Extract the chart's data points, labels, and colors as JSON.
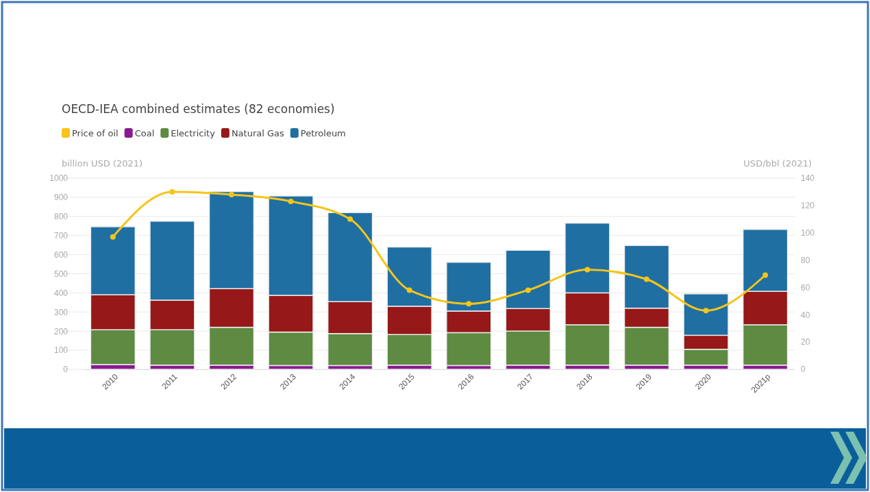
{
  "chart_data": {
    "type": "bar",
    "title": "OECD-IEA combined estimates (82 economies)",
    "ylabel": "billion USD (2021)",
    "y2label": "USD/bbl (2021)",
    "categories": [
      "2010",
      "2011",
      "2012",
      "2013",
      "2014",
      "2015",
      "2016",
      "2017",
      "2018",
      "2019",
      "2020",
      "2021p"
    ],
    "stacked": true,
    "series": [
      {
        "name": "Price of oil",
        "type": "line",
        "axis": "y2",
        "color": "#f5c518",
        "marker": "circle",
        "values": [
          97,
          130,
          128,
          123,
          110,
          58,
          48,
          58,
          73,
          66,
          43,
          69
        ]
      },
      {
        "name": "Coal",
        "color": "#8a1a8f",
        "values": [
          25,
          22,
          22,
          20,
          20,
          22,
          20,
          22,
          22,
          22,
          22,
          22
        ]
      },
      {
        "name": "Electricity",
        "color": "#5e8a42",
        "values": [
          182,
          185,
          198,
          175,
          167,
          160,
          172,
          178,
          211,
          198,
          83,
          211
        ]
      },
      {
        "name": "Natural Gas",
        "color": "#961818",
        "values": [
          183,
          155,
          202,
          192,
          167,
          148,
          113,
          118,
          167,
          100,
          73,
          175
        ]
      },
      {
        "name": "Petroleum",
        "color": "#1f6fa3",
        "values": [
          356,
          413,
          508,
          520,
          466,
          310,
          255,
          305,
          365,
          328,
          217,
          324
        ]
      }
    ],
    "ylim": [
      0,
      1000
    ],
    "yticks": [
      0,
      100,
      200,
      300,
      400,
      500,
      600,
      700,
      800,
      900,
      1000
    ],
    "y2lim": [
      0,
      140
    ],
    "y2ticks": [
      0,
      20,
      40,
      60,
      80,
      100,
      120,
      140
    ],
    "grid": "y",
    "legend": "top left"
  }
}
